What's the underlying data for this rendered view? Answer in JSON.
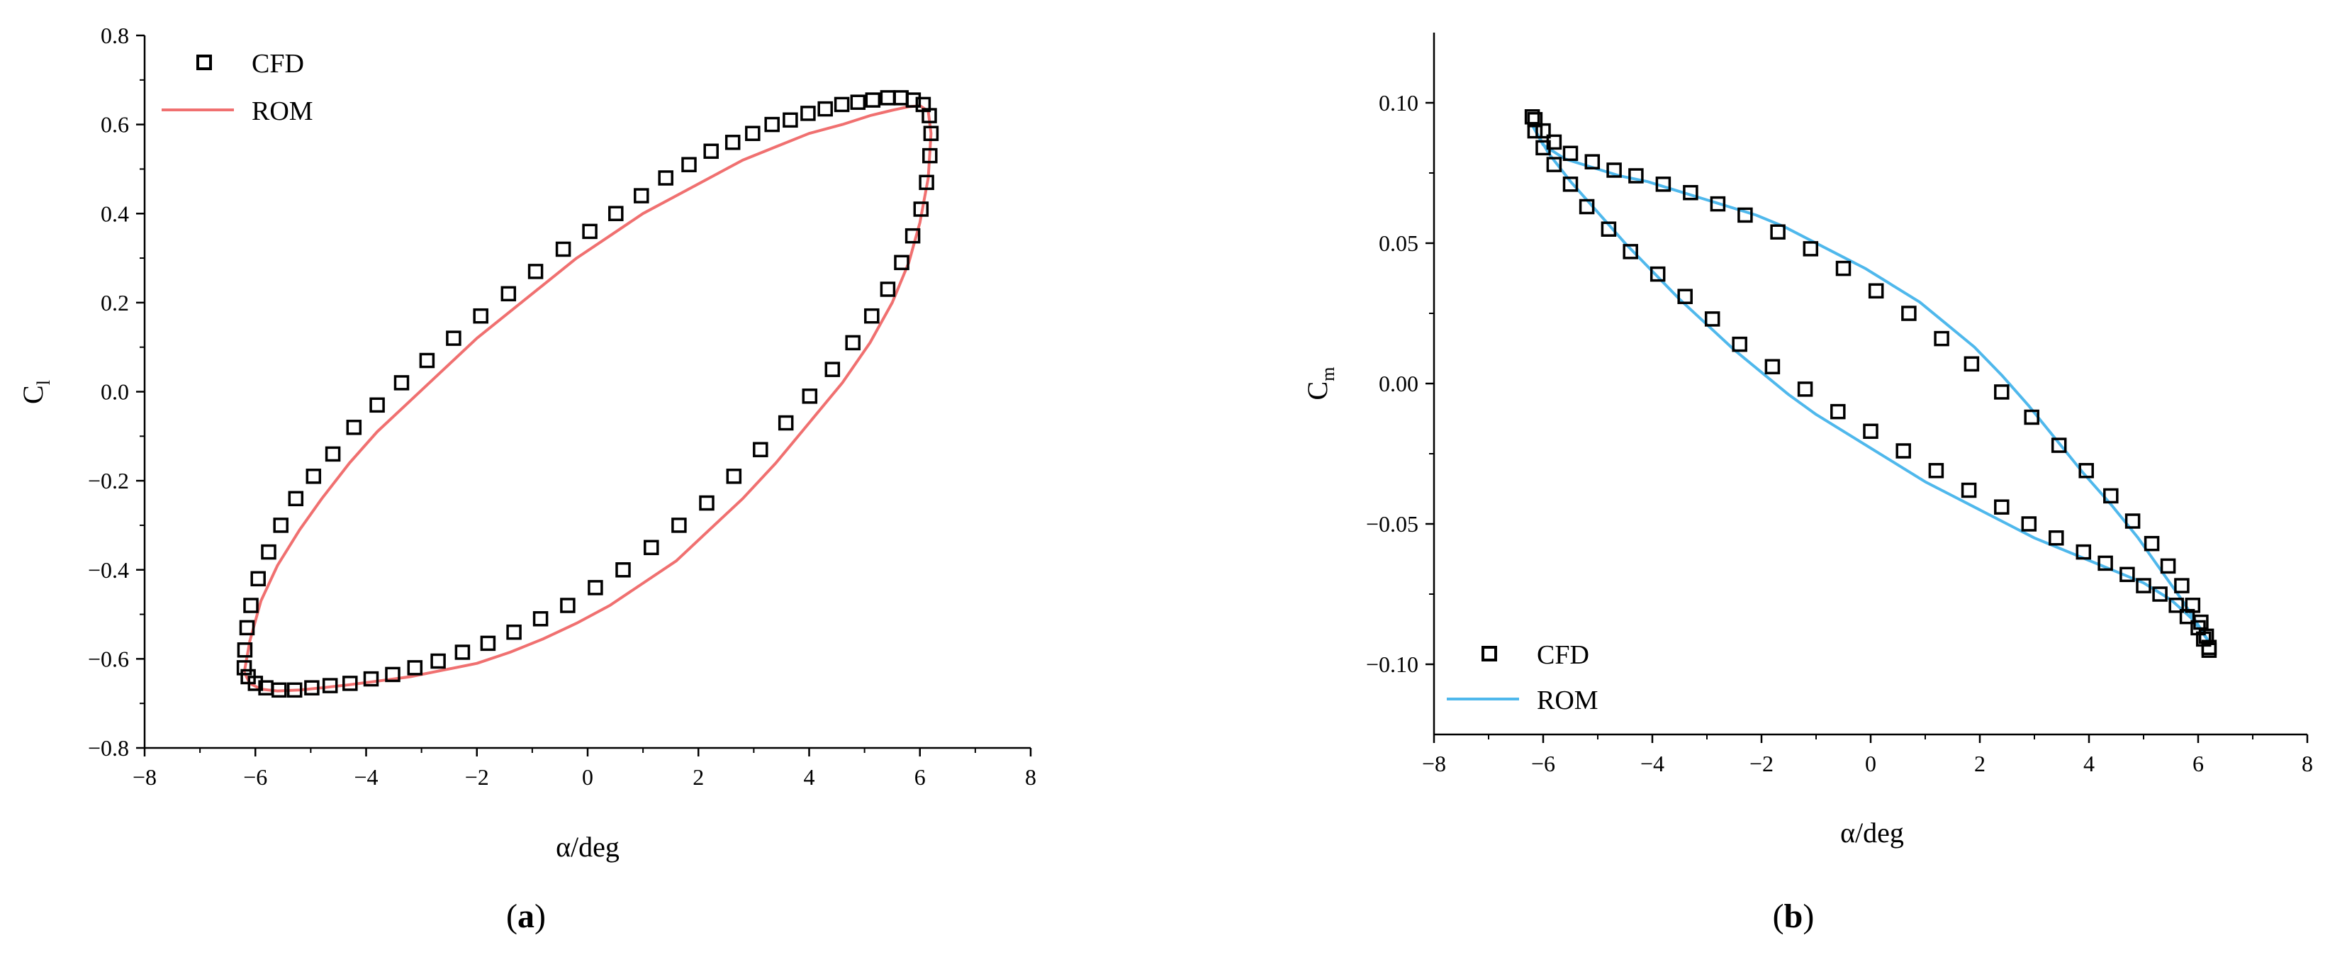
{
  "figure": {
    "panels": [
      {
        "id": "a",
        "caption_open": "(",
        "caption_letter": "a",
        "caption_close": ")"
      },
      {
        "id": "b",
        "caption_open": "(",
        "caption_letter": "b",
        "caption_close": ")"
      }
    ]
  },
  "chart_data": [
    {
      "type": "scatter",
      "title": "",
      "xlabel": "α/deg",
      "ylabel": "C",
      "ylabel_sub": "l",
      "xlim": [
        -8,
        8
      ],
      "ylim": [
        -0.8,
        0.8
      ],
      "xticks": [
        -8,
        -6,
        -4,
        -2,
        0,
        2,
        4,
        6,
        8
      ],
      "yticks": [
        -0.8,
        -0.6,
        -0.4,
        -0.2,
        0.0,
        0.2,
        0.4,
        0.6,
        0.8
      ],
      "xtick_labels": [
        "−8",
        "−6",
        "−4",
        "−2",
        "0",
        "2",
        "4",
        "6",
        "8"
      ],
      "ytick_labels": [
        "−0.8",
        "−0.6",
        "−0.4",
        "−0.2",
        "0.0",
        "0.2",
        "0.4",
        "0.6",
        "0.8"
      ],
      "grid": false,
      "legend_position": "top-left",
      "series": [
        {
          "name": "CFD",
          "marker": "open-square",
          "color": "#000000",
          "x": [
            -6.2,
            -6.19,
            -6.15,
            -6.08,
            -5.95,
            -5.76,
            -5.54,
            -5.27,
            -4.95,
            -4.6,
            -4.22,
            -3.8,
            -3.36,
            -2.9,
            -2.42,
            -1.93,
            -1.43,
            -0.94,
            -0.44,
            0.04,
            0.51,
            0.97,
            1.41,
            1.83,
            2.23,
            2.62,
            2.98,
            3.33,
            3.66,
            3.98,
            4.29,
            4.59,
            4.88,
            5.15,
            5.42,
            5.66,
            5.88,
            6.06,
            6.17,
            6.2,
            6.18,
            6.12,
            6.02,
            5.87,
            5.67,
            5.42,
            5.13,
            4.79,
            4.42,
            4.01,
            3.58,
            3.12,
            2.64,
            2.15,
            1.65,
            1.15,
            0.64,
            0.14,
            -0.36,
            -0.85,
            -1.33,
            -1.8,
            -2.26,
            -2.7,
            -3.12,
            -3.52,
            -3.91,
            -4.29,
            -4.65,
            -4.98,
            -5.29,
            -5.57,
            -5.81,
            -6.0,
            -6.13
          ],
          "y": [
            -0.62,
            -0.58,
            -0.53,
            -0.48,
            -0.42,
            -0.36,
            -0.3,
            -0.24,
            -0.19,
            -0.14,
            -0.08,
            -0.03,
            0.02,
            0.07,
            0.12,
            0.17,
            0.22,
            0.27,
            0.32,
            0.36,
            0.4,
            0.44,
            0.48,
            0.51,
            0.54,
            0.56,
            0.58,
            0.6,
            0.61,
            0.625,
            0.635,
            0.645,
            0.65,
            0.655,
            0.66,
            0.66,
            0.655,
            0.645,
            0.62,
            0.58,
            0.53,
            0.47,
            0.41,
            0.35,
            0.29,
            0.23,
            0.17,
            0.11,
            0.05,
            -0.01,
            -0.07,
            -0.13,
            -0.19,
            -0.25,
            -0.3,
            -0.35,
            -0.4,
            -0.44,
            -0.48,
            -0.51,
            -0.54,
            -0.565,
            -0.585,
            -0.605,
            -0.62,
            -0.635,
            -0.645,
            -0.655,
            -0.66,
            -0.665,
            -0.67,
            -0.67,
            -0.665,
            -0.655,
            -0.64
          ]
        },
        {
          "name": "ROM",
          "marker": "line",
          "color": "#f07070",
          "x": [
            -6.2,
            -6.1,
            -5.9,
            -5.6,
            -5.2,
            -4.8,
            -4.3,
            -3.8,
            -3.2,
            -2.6,
            -2.0,
            -1.4,
            -0.8,
            -0.2,
            0.4,
            1.0,
            1.6,
            2.2,
            2.8,
            3.4,
            4.0,
            4.6,
            5.1,
            5.5,
            5.8,
            6.0,
            6.15,
            6.2,
            6.15,
            6.0,
            5.8,
            5.5,
            5.1,
            4.6,
            4.0,
            3.4,
            2.8,
            2.2,
            1.6,
            1.0,
            0.4,
            -0.2,
            -0.8,
            -1.4,
            -2.0,
            -2.6,
            -3.2,
            -3.8,
            -4.3,
            -4.8,
            -5.2,
            -5.6,
            -5.9,
            -6.1,
            -6.2
          ],
          "y": [
            -0.63,
            -0.56,
            -0.47,
            -0.39,
            -0.31,
            -0.24,
            -0.16,
            -0.09,
            -0.02,
            0.05,
            0.12,
            0.18,
            0.24,
            0.3,
            0.35,
            0.4,
            0.44,
            0.48,
            0.52,
            0.55,
            0.58,
            0.6,
            0.62,
            0.632,
            0.64,
            0.642,
            0.63,
            0.58,
            0.48,
            0.38,
            0.29,
            0.2,
            0.11,
            0.02,
            -0.07,
            -0.16,
            -0.24,
            -0.31,
            -0.38,
            -0.43,
            -0.48,
            -0.52,
            -0.555,
            -0.585,
            -0.61,
            -0.625,
            -0.64,
            -0.65,
            -0.658,
            -0.665,
            -0.67,
            -0.672,
            -0.668,
            -0.655,
            -0.63
          ]
        }
      ]
    },
    {
      "type": "scatter",
      "title": "",
      "xlabel": "α/deg",
      "ylabel": "C",
      "ylabel_sub": "m",
      "xlim": [
        -8,
        8
      ],
      "ylim": [
        -0.125,
        0.125
      ],
      "xticks": [
        -8,
        -6,
        -4,
        -2,
        0,
        2,
        4,
        6,
        8
      ],
      "yticks": [
        -0.1,
        -0.05,
        0.0,
        0.05,
        0.1
      ],
      "xtick_labels": [
        "−8",
        "−6",
        "−4",
        "−2",
        "0",
        "2",
        "4",
        "6",
        "8"
      ],
      "ytick_labels": [
        "−0.10",
        "−0.05",
        "0.00",
        "0.05",
        "0.10"
      ],
      "grid": false,
      "legend_position": "bottom-left",
      "series": [
        {
          "name": "CFD",
          "marker": "open-square",
          "color": "#000000",
          "x": [
            -6.2,
            -6.15,
            -6.0,
            -5.8,
            -5.5,
            -5.2,
            -4.8,
            -4.4,
            -3.9,
            -3.4,
            -2.9,
            -2.4,
            -1.8,
            -1.2,
            -0.6,
            0.0,
            0.6,
            1.2,
            1.8,
            2.4,
            2.9,
            3.4,
            3.9,
            4.3,
            4.7,
            5.0,
            5.3,
            5.6,
            5.8,
            6.0,
            6.1,
            6.2,
            6.2,
            6.15,
            6.05,
            5.9,
            5.7,
            5.45,
            5.15,
            4.8,
            4.4,
            3.95,
            3.45,
            2.95,
            2.4,
            1.85,
            1.3,
            0.7,
            0.1,
            -0.5,
            -1.1,
            -1.7,
            -2.3,
            -2.8,
            -3.3,
            -3.8,
            -4.3,
            -4.7,
            -5.1,
            -5.5,
            -5.8,
            -6.0,
            -6.15
          ],
          "y": [
            0.095,
            0.09,
            0.084,
            0.078,
            0.071,
            0.063,
            0.055,
            0.047,
            0.039,
            0.031,
            0.023,
            0.014,
            0.006,
            -0.002,
            -0.01,
            -0.017,
            -0.024,
            -0.031,
            -0.038,
            -0.044,
            -0.05,
            -0.055,
            -0.06,
            -0.064,
            -0.068,
            -0.072,
            -0.075,
            -0.079,
            -0.083,
            -0.087,
            -0.091,
            -0.094,
            -0.095,
            -0.09,
            -0.085,
            -0.079,
            -0.072,
            -0.065,
            -0.057,
            -0.049,
            -0.04,
            -0.031,
            -0.022,
            -0.012,
            -0.003,
            0.007,
            0.016,
            0.025,
            0.033,
            0.041,
            0.048,
            0.054,
            0.06,
            0.064,
            0.068,
            0.071,
            0.074,
            0.076,
            0.079,
            0.082,
            0.086,
            0.09,
            0.094
          ]
        },
        {
          "name": "ROM",
          "marker": "line",
          "color": "#4fb8ec",
          "x": [
            -6.2,
            -5.9,
            -5.5,
            -5.0,
            -4.5,
            -4.0,
            -3.5,
            -3.0,
            -2.5,
            -2.0,
            -1.5,
            -1.0,
            -0.5,
            0.0,
            0.5,
            1.0,
            1.5,
            2.0,
            2.5,
            3.0,
            3.5,
            4.0,
            4.5,
            5.0,
            5.5,
            5.9,
            6.2,
            6.0,
            5.7,
            5.3,
            4.9,
            4.4,
            3.9,
            3.4,
            2.9,
            2.4,
            1.9,
            1.4,
            0.9,
            0.4,
            -0.1,
            -0.6,
            -1.1,
            -1.6,
            -2.1,
            -2.6,
            -3.1,
            -3.6,
            -4.1,
            -4.6,
            -5.1,
            -5.6,
            -6.0,
            -6.2
          ],
          "y": [
            0.092,
            0.082,
            0.072,
            0.061,
            0.05,
            0.04,
            0.03,
            0.021,
            0.012,
            0.004,
            -0.004,
            -0.011,
            -0.017,
            -0.023,
            -0.029,
            -0.035,
            -0.04,
            -0.045,
            -0.05,
            -0.055,
            -0.059,
            -0.063,
            -0.067,
            -0.071,
            -0.077,
            -0.084,
            -0.092,
            -0.086,
            -0.077,
            -0.066,
            -0.055,
            -0.043,
            -0.032,
            -0.02,
            -0.008,
            0.003,
            0.013,
            0.021,
            0.029,
            0.035,
            0.041,
            0.046,
            0.051,
            0.056,
            0.06,
            0.063,
            0.066,
            0.069,
            0.072,
            0.074,
            0.077,
            0.08,
            0.085,
            0.092
          ]
        }
      ]
    }
  ]
}
